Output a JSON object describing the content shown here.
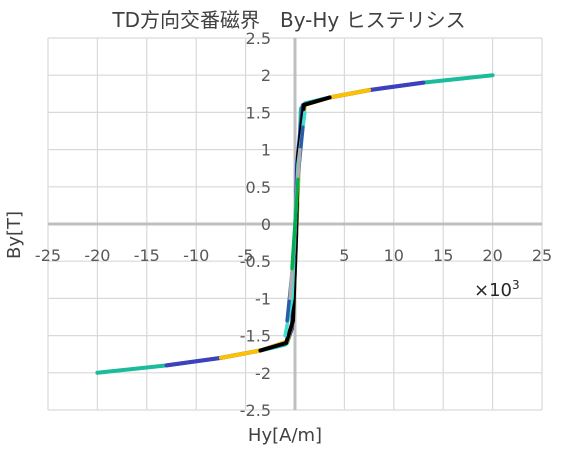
{
  "chart_data": {
    "type": "line",
    "title": "TD方向交番磁界　By-Hy ヒステリシス",
    "xlabel": "Hy[A/m]",
    "ylabel": "By[T]",
    "x_multiplier_label": "×10",
    "x_multiplier_exponent": "3",
    "xlim": [
      -25,
      25
    ],
    "ylim": [
      -2.5,
      2.5
    ],
    "x_ticks": [
      -25,
      -20,
      -15,
      -10,
      -5,
      0,
      5,
      10,
      15,
      20,
      25
    ],
    "x_tick_labels": [
      "-25",
      "-20",
      "-15",
      "-10",
      "-5",
      "0",
      "5",
      "10",
      "15",
      "20",
      "25"
    ],
    "y_ticks": [
      2.5,
      2,
      1.5,
      1,
      0.5,
      0,
      -0.5,
      -1,
      -1.5,
      -2,
      -2.5
    ],
    "y_tick_labels": [
      "2.5",
      "2",
      "1.5",
      "1",
      "0.5",
      "0",
      "-0.5",
      "-1",
      "-1.5",
      "-2",
      "-2.5"
    ],
    "grid": true,
    "series": [
      {
        "color": "#1abc9c",
        "points": [
          [
            20,
            2.0
          ],
          [
            13,
            1.9
          ],
          [
            7.5,
            1.8
          ],
          [
            3.5,
            1.7
          ],
          [
            1.0,
            1.62
          ],
          [
            0.6,
            1.55
          ],
          [
            0.3,
            0.5
          ],
          [
            0.0,
            -0.6
          ],
          [
            -0.3,
            -1.4
          ],
          [
            -0.8,
            -1.6
          ],
          [
            -1.0,
            -1.62
          ],
          [
            -3.5,
            -1.7
          ],
          [
            -7.5,
            -1.8
          ],
          [
            -13,
            -1.9
          ],
          [
            -20,
            -2.0
          ]
        ]
      },
      {
        "color": "#3f3fbf",
        "points": [
          [
            13,
            1.9
          ],
          [
            7.5,
            1.8
          ],
          [
            3.5,
            1.7
          ],
          [
            0.8,
            1.6
          ],
          [
            0.2,
            0.8
          ],
          [
            0.0,
            -0.3
          ],
          [
            -0.3,
            -1.4
          ],
          [
            -0.8,
            -1.58
          ],
          [
            -3.5,
            -1.7
          ],
          [
            -7.5,
            -1.8
          ],
          [
            -13,
            -1.9
          ]
        ]
      },
      {
        "color": "#ffc000",
        "points": [
          [
            7.5,
            1.8
          ],
          [
            3.5,
            1.7
          ],
          [
            1.0,
            1.6
          ],
          [
            0.4,
            0.9
          ],
          [
            0.1,
            -0.2
          ],
          [
            -0.2,
            -1.3
          ],
          [
            -0.8,
            -1.58
          ],
          [
            -3.5,
            -1.7
          ],
          [
            -7.5,
            -1.8
          ]
        ]
      },
      {
        "color": "#000000",
        "points": [
          [
            3.5,
            1.7
          ],
          [
            0.9,
            1.6
          ],
          [
            0.3,
            0.9
          ],
          [
            0.1,
            -0.2
          ],
          [
            -0.2,
            -1.3
          ],
          [
            -0.9,
            -1.6
          ],
          [
            -3.5,
            -1.7
          ]
        ]
      },
      {
        "color": "#40e0d0",
        "points": [
          [
            1.0,
            1.5
          ],
          [
            0.3,
            0.8
          ],
          [
            0.0,
            -0.1
          ],
          [
            -0.3,
            -1.0
          ],
          [
            -1.0,
            -1.5
          ]
        ]
      },
      {
        "color": "#2a5caa",
        "points": [
          [
            0.8,
            1.3
          ],
          [
            0.2,
            0.5
          ],
          [
            -0.1,
            -0.4
          ],
          [
            -0.8,
            -1.3
          ]
        ]
      },
      {
        "color": "#b0b0b0",
        "points": [
          [
            0.5,
            1.0
          ],
          [
            0.1,
            0.3
          ],
          [
            -0.1,
            -0.3
          ],
          [
            -0.5,
            -1.0
          ]
        ]
      },
      {
        "color": "#00b050",
        "points": [
          [
            0.3,
            0.6
          ],
          [
            0.05,
            0.1
          ],
          [
            -0.05,
            -0.1
          ],
          [
            -0.3,
            -0.6
          ]
        ]
      }
    ]
  }
}
